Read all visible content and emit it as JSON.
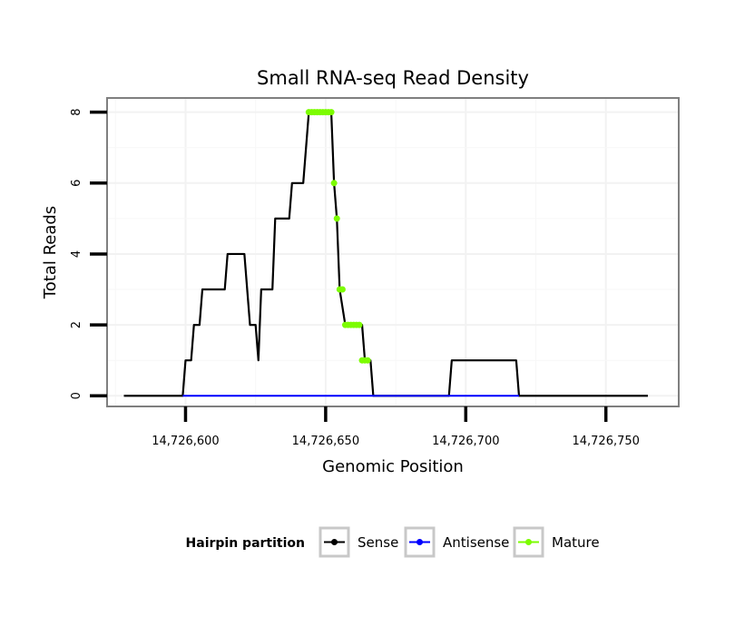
{
  "chart_data": {
    "type": "line",
    "title": "Small RNA-seq Read Density",
    "xlabel": "Genomic Position",
    "ylabel": "Total Reads",
    "xlim": [
      14726572,
      14726776
    ],
    "ylim": [
      -0.3,
      8.4
    ],
    "xticks": [
      14726600,
      14726650,
      14726700,
      14726750
    ],
    "xtick_labels": [
      "14,726,600",
      "14,726,650",
      "14,726,700",
      "14,726,750"
    ],
    "yticks": [
      0,
      2,
      4,
      6,
      8
    ],
    "ytick_labels": [
      "0",
      "2",
      "4",
      "6",
      "8"
    ],
    "grid": true,
    "legend": {
      "title": "Hairpin partition",
      "position": "bottom",
      "entries": [
        {
          "name": "Sense",
          "color": "#000000"
        },
        {
          "name": "Antisense",
          "color": "#0000ff"
        },
        {
          "name": "Mature",
          "color": "#7cfc00"
        }
      ]
    },
    "series": [
      {
        "name": "Sense",
        "color": "#000000",
        "points": [
          [
            14726578,
            0
          ],
          [
            14726599,
            0
          ],
          [
            14726600,
            1
          ],
          [
            14726602,
            1
          ],
          [
            14726603,
            2
          ],
          [
            14726605,
            2
          ],
          [
            14726606,
            3
          ],
          [
            14726614,
            3
          ],
          [
            14726615,
            4
          ],
          [
            14726621,
            4
          ],
          [
            14726623,
            2
          ],
          [
            14726625,
            2
          ],
          [
            14726626,
            1
          ],
          [
            14726627,
            3
          ],
          [
            14726631,
            3
          ],
          [
            14726632,
            5
          ],
          [
            14726637,
            5
          ],
          [
            14726638,
            6
          ],
          [
            14726642,
            6
          ],
          [
            14726644,
            8
          ],
          [
            14726652,
            8
          ],
          [
            14726653,
            6
          ],
          [
            14726654,
            5
          ],
          [
            14726655,
            3
          ],
          [
            14726657,
            2
          ],
          [
            14726663,
            2
          ],
          [
            14726664,
            1
          ],
          [
            14726666,
            1
          ],
          [
            14726667,
            0
          ],
          [
            14726694,
            0
          ],
          [
            14726695,
            1
          ],
          [
            14726718,
            1
          ],
          [
            14726719,
            0
          ],
          [
            14726765,
            0
          ]
        ]
      },
      {
        "name": "Antisense",
        "color": "#0000ff",
        "points": [
          [
            14726599,
            0
          ],
          [
            14726719,
            0
          ]
        ]
      },
      {
        "name": "Mature",
        "color": "#7cfc00",
        "points": [
          [
            14726644,
            8
          ],
          [
            14726645,
            8
          ],
          [
            14726646,
            8
          ],
          [
            14726647,
            8
          ],
          [
            14726648,
            8
          ],
          [
            14726649,
            8
          ],
          [
            14726650,
            8
          ],
          [
            14726651,
            8
          ],
          [
            14726652,
            8
          ],
          [
            14726653,
            6
          ],
          [
            14726654,
            5
          ],
          [
            14726655,
            3
          ],
          [
            14726656,
            3
          ],
          [
            14726657,
            2
          ],
          [
            14726658,
            2
          ],
          [
            14726659,
            2
          ],
          [
            14726660,
            2
          ],
          [
            14726661,
            2
          ],
          [
            14726662,
            2
          ],
          [
            14726663,
            1
          ],
          [
            14726664,
            1
          ],
          [
            14726665,
            1
          ]
        ]
      }
    ]
  }
}
